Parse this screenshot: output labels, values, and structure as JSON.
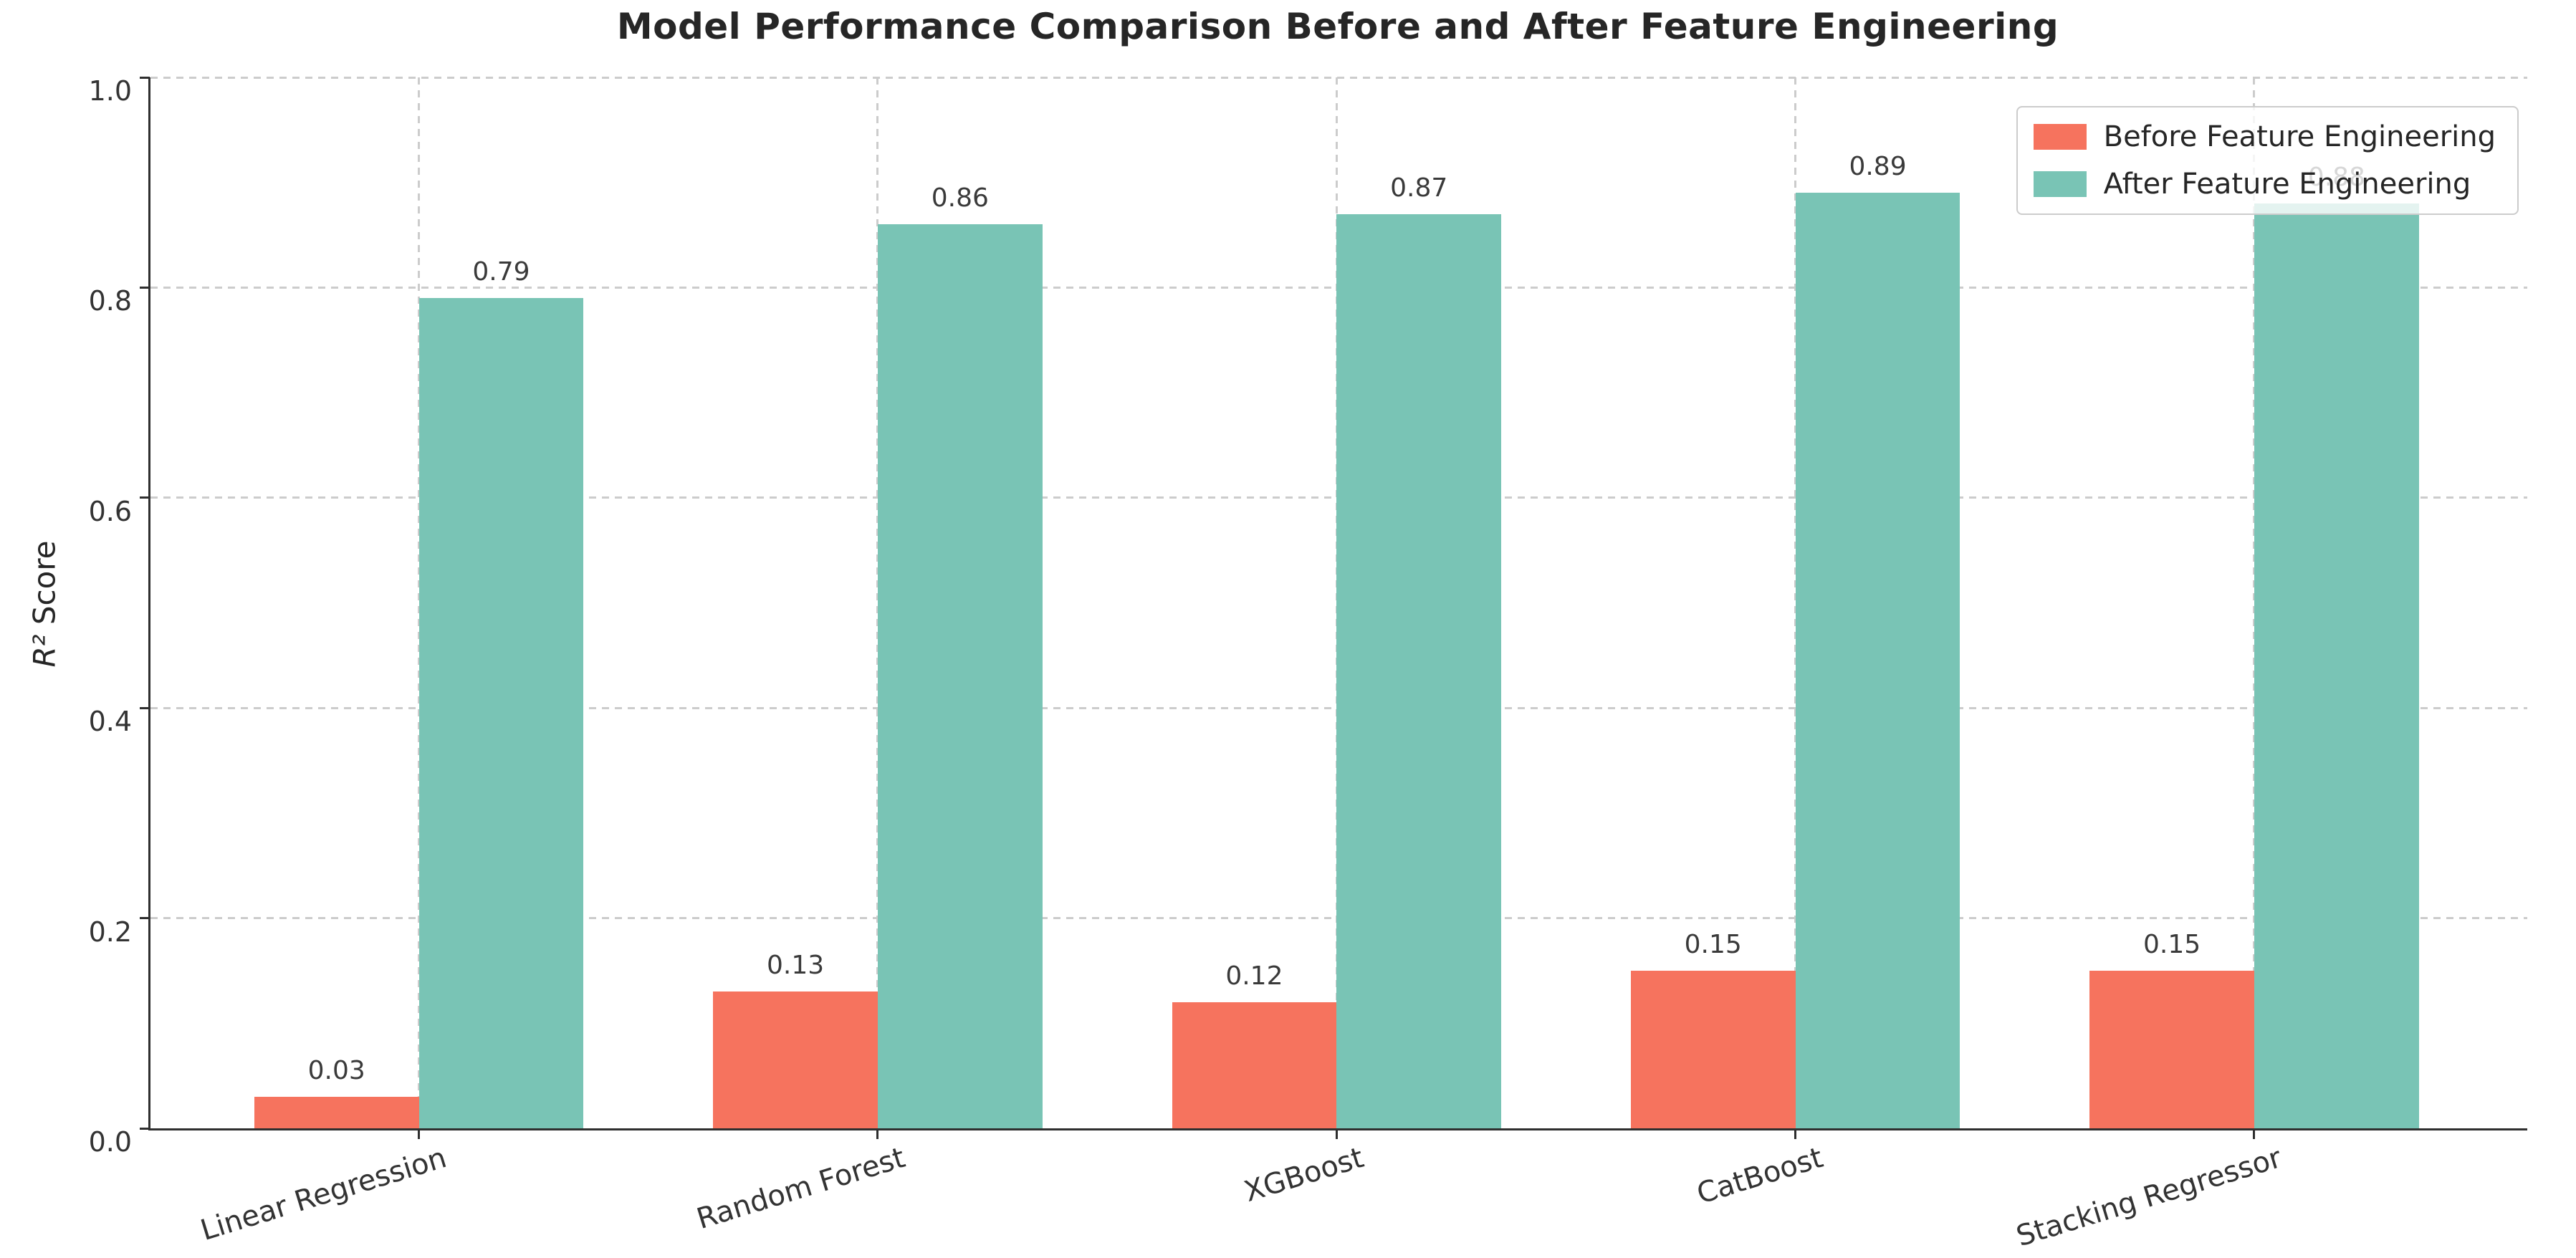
{
  "figure": {
    "title": "Model Performance Comparison Before and After Feature Engineering"
  },
  "chart_data": {
    "type": "bar",
    "title": "Model Performance Comparison Before and After Feature Engineering",
    "categories": [
      "Linear Regression",
      "Random Forest",
      "XGBoost",
      "CatBoost",
      "Stacking Regressor"
    ],
    "series": [
      {
        "name": "Before Feature Engineering",
        "color": "#f6735e",
        "values": [
          0.03,
          0.13,
          0.12,
          0.15,
          0.15
        ]
      },
      {
        "name": "After Feature Engineering",
        "color": "#79c4b5",
        "values": [
          0.79,
          0.86,
          0.87,
          0.89,
          0.88
        ]
      }
    ],
    "bar_value_labels": [
      [
        "0.03",
        "0.13",
        "0.12",
        "0.15",
        "0.15"
      ],
      [
        "0.79",
        "0.86",
        "0.87",
        "0.89",
        "0.88"
      ]
    ],
    "xlabel": "",
    "ylabel": "R² Score",
    "ylabel_math": "R²",
    "ylabel_rest": " Score",
    "ylim": [
      0.0,
      1.0
    ],
    "yticks": [
      "0.0",
      "0.2",
      "0.4",
      "0.6",
      "0.8",
      "1.0"
    ],
    "grid": "dashed",
    "gridline_color": "#cccccc",
    "legend_position": "upper right",
    "x_tick_rotation_deg": 17,
    "note": "Value label 0.88 of last bar is partially covered by the legend box"
  },
  "colors": {
    "before_series": "#f6735e",
    "after_series": "#79c4b5",
    "spine": "#2f2f2f",
    "grid": "#cccccc",
    "title_text": "#262626",
    "tick_text": "#333333",
    "value_label_text": "#3a3a3a",
    "legend_border": "#cccccc"
  }
}
